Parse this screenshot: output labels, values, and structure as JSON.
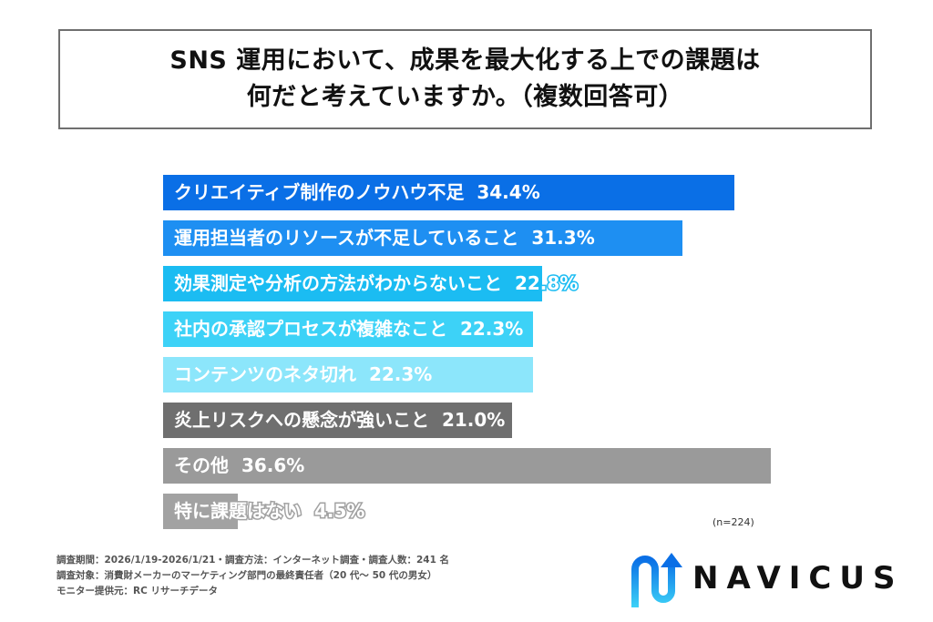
{
  "title": {
    "line1": "SNS 運用において、成果を最大化する上での課題は",
    "line2": "何だと考えていますか。（複数回答可）"
  },
  "chart_data": {
    "type": "bar",
    "orientation": "horizontal",
    "title": "SNS 運用において、成果を最大化する上での課題は何だと考えていますか。（複数回答可）",
    "categories": [
      "クリエイティブ制作のノウハウ不足",
      "運用担当者のリソースが不足していること",
      "効果測定や分析の方法がわからないこと",
      "社内の承認プロセスが複雑なこと",
      "コンテンツのネタ切れ",
      "炎上リスクへの懸念が強いこと",
      "その他",
      "特に課題はない"
    ],
    "values": [
      34.4,
      31.3,
      22.8,
      22.3,
      22.3,
      21.0,
      36.6,
      4.5
    ],
    "unit": "%",
    "sample_size": "n=224",
    "xlabel": "",
    "ylabel": "",
    "grid": false,
    "legend": "none",
    "colors": [
      "#0a6fe6",
      "#1e8ff2",
      "#1bbcf2",
      "#3dd2f7",
      "#8ce6fb",
      "#6f6f6f",
      "#9a9a9a",
      "#a2a2a2"
    ]
  },
  "bars": [
    {
      "label": "クリエイティブ制作のノウハウ不足",
      "value_text": "34.4%",
      "color": "#0a6fe6",
      "stroke": "#0a6fe6"
    },
    {
      "label": "運用担当者のリソースが不足していること",
      "value_text": "31.3%",
      "color": "#1e8ff2",
      "stroke": "#1e8ff2"
    },
    {
      "label": "効果測定や分析の方法がわからないこと",
      "value_text": "22.8%",
      "color": "#1bbcf2",
      "stroke": "#1bbcf2"
    },
    {
      "label": "社内の承認プロセスが複雑なこと",
      "value_text": "22.3%",
      "color": "#3dd2f7",
      "stroke": "#3dd2f7"
    },
    {
      "label": "コンテンツのネタ切れ",
      "value_text": "22.3%",
      "color": "#8ce6fb",
      "stroke": "#8ce6fb"
    },
    {
      "label": "炎上リスクへの懸念が強いこと",
      "value_text": "21.0%",
      "color": "#6f6f6f",
      "stroke": "#6f6f6f"
    },
    {
      "label": "その他",
      "value_text": "36.6%",
      "color": "#9a9a9a",
      "stroke": "#9a9a9a"
    },
    {
      "label": "特に課題はない",
      "value_text": "4.5%",
      "color": "#a2a2a2",
      "stroke": "#a2a2a2"
    }
  ],
  "sample": "(n=224)",
  "footnote": {
    "line1": "調査期間：2026/1/19-2026/1/21・調査方法：インターネット調査・調査人数：241 名",
    "line2": "調査対象：消費財メーカーのマーケティング部門の最終責任者（20 代～ 50 代の男女）",
    "line3": "モニター提供元：RC リサーチデータ"
  },
  "logo": {
    "text": "NAVICUS",
    "color_top": "#0a6fe6",
    "color_bottom": "#3dd2f7"
  }
}
